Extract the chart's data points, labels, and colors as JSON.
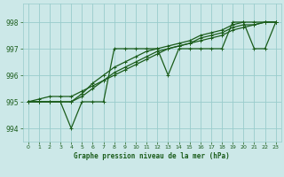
{
  "title": "Graphe pression niveau de la mer (hPa)",
  "background_color": "#cce8e8",
  "grid_color": "#99cccc",
  "line_color": "#1a5c1a",
  "xlim": [
    -0.5,
    23.5
  ],
  "ylim": [
    993.5,
    998.7
  ],
  "yticks": [
    994,
    995,
    996,
    997,
    998
  ],
  "xticks": [
    0,
    1,
    2,
    3,
    4,
    5,
    6,
    7,
    8,
    9,
    10,
    11,
    12,
    13,
    14,
    15,
    16,
    17,
    18,
    19,
    20,
    21,
    22,
    23
  ],
  "lines": [
    [
      995.0,
      995.0,
      995.0,
      995.0,
      994.0,
      995.0,
      995.0,
      995.0,
      997.0,
      997.0,
      997.0,
      997.0,
      997.0,
      996.0,
      997.0,
      997.0,
      997.0,
      997.0,
      997.0,
      998.0,
      998.0,
      997.0,
      997.0,
      998.0
    ],
    [
      995.0,
      995.0,
      995.0,
      995.0,
      995.0,
      995.3,
      995.7,
      996.0,
      996.3,
      996.5,
      996.7,
      996.9,
      997.0,
      997.1,
      997.2,
      997.3,
      997.5,
      997.6,
      997.7,
      997.9,
      998.0,
      998.0,
      998.0,
      998.0
    ],
    [
      995.0,
      995.0,
      995.0,
      995.0,
      995.0,
      995.2,
      995.5,
      995.8,
      996.1,
      996.3,
      996.5,
      996.7,
      996.9,
      997.0,
      997.1,
      997.2,
      997.4,
      997.5,
      997.6,
      997.8,
      997.9,
      997.9,
      998.0,
      998.0
    ],
    [
      995.0,
      995.1,
      995.2,
      995.2,
      995.2,
      995.4,
      995.6,
      995.8,
      996.0,
      996.2,
      996.4,
      996.6,
      996.8,
      997.0,
      997.1,
      997.2,
      997.3,
      997.4,
      997.5,
      997.7,
      997.8,
      997.9,
      998.0,
      998.0
    ]
  ]
}
